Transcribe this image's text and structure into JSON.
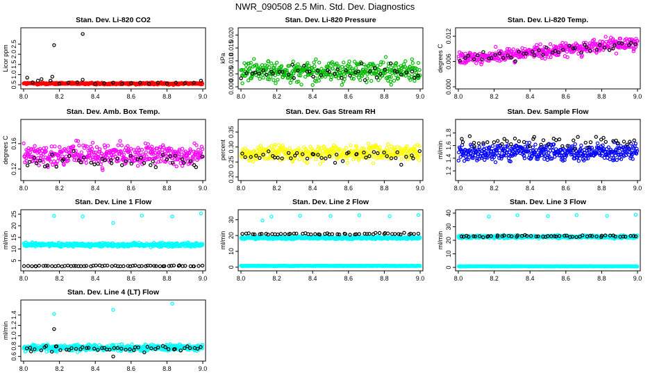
{
  "figure": {
    "title": "NWR_090508  2.5 Min. Std. Dev. Diagnostics"
  },
  "chart_data": [
    {
      "type": "scatter",
      "title": "Stan. Dev. Li-820 CO2",
      "ylabel": "Licor ppm",
      "xlim": [
        8.0,
        9.0
      ],
      "ylim": [
        0.4,
        3.2
      ],
      "xticks": [
        "8.0",
        "8.2",
        "8.4",
        "8.6",
        "8.8",
        "9.0"
      ],
      "yticks": [
        "0.5",
        "1.0",
        "1.5",
        "2.0",
        "2.5"
      ],
      "series": [
        {
          "color": "#ff0000",
          "gen": {
            "n": 420,
            "center": 0.56,
            "spread": 0.05
          }
        },
        {
          "color": "#000000",
          "points": [
            [
              8.02,
              0.85
            ],
            [
              8.05,
              0.62
            ],
            [
              8.08,
              0.7
            ],
            [
              8.1,
              0.78
            ],
            [
              8.15,
              0.7
            ],
            [
              8.16,
              0.9
            ],
            [
              8.17,
              2.45
            ],
            [
              8.2,
              0.55
            ],
            [
              8.25,
              0.6
            ],
            [
              8.3,
              0.62
            ],
            [
              8.33,
              0.75
            ],
            [
              8.33,
              3.0
            ],
            [
              8.4,
              0.55
            ],
            [
              8.45,
              0.58
            ],
            [
              8.5,
              0.6
            ],
            [
              8.55,
              0.55
            ],
            [
              8.6,
              0.58
            ],
            [
              8.65,
              0.6
            ],
            [
              8.7,
              0.55
            ],
            [
              8.75,
              0.6
            ],
            [
              8.8,
              0.55
            ],
            [
              8.85,
              0.6
            ],
            [
              8.9,
              0.58
            ],
            [
              8.95,
              0.6
            ],
            [
              8.99,
              0.7
            ]
          ]
        }
      ]
    },
    {
      "type": "scatter",
      "title": "Stan. Dev. Li-820 Pressure",
      "ylabel": "kPa",
      "xlim": [
        8.0,
        9.0
      ],
      "ylim": [
        0.0,
        0.022
      ],
      "xticks": [
        "8.0",
        "8.2",
        "8.4",
        "8.6",
        "8.8",
        "9.0"
      ],
      "yticks": [
        "0.000",
        "0.005",
        "0.010",
        "0.015",
        "0.020"
      ],
      "series": [
        {
          "color": "#00bb00",
          "gen": {
            "n": 420,
            "center": 0.006,
            "spread": 0.004
          }
        },
        {
          "color": "#000000",
          "gen": {
            "n": 45,
            "center": 0.0055,
            "spread": 0.003
          }
        }
      ]
    },
    {
      "type": "scatter",
      "title": "Stan. Dev. Li-820 Temp.",
      "ylabel": "degrees C",
      "xlim": [
        8.0,
        9.0
      ],
      "ylim": [
        0.0,
        0.0135
      ],
      "xticks": [
        "8.0",
        "8.2",
        "8.4",
        "8.6",
        "8.8",
        "9.0"
      ],
      "yticks": [
        "0.000",
        "0.006",
        "0.012"
      ],
      "series": [
        {
          "color": "#ff00ff",
          "gen": {
            "n": 420,
            "center": 0.0085,
            "spread": 0.0015,
            "trend": 0.004
          }
        },
        {
          "color": "#000000",
          "gen": {
            "n": 45,
            "center": 0.0085,
            "spread": 0.0012,
            "trend": 0.004
          }
        }
      ]
    },
    {
      "type": "scatter",
      "title": "Stan. Dev. Amb. Box Temp.",
      "ylabel": "degrees C",
      "xlim": [
        8.0,
        9.0
      ],
      "ylim": [
        0.105,
        0.195
      ],
      "xticks": [
        "8.0",
        "8.2",
        "8.4",
        "8.6",
        "8.8",
        "9.0"
      ],
      "yticks": [
        "0.12",
        "0.16"
      ],
      "series": [
        {
          "color": "#ff00ff",
          "gen": {
            "n": 420,
            "center": 0.142,
            "spread": 0.016
          }
        },
        {
          "color": "#000000",
          "gen": {
            "n": 45,
            "center": 0.132,
            "spread": 0.012
          }
        }
      ]
    },
    {
      "type": "scatter",
      "title": "Stan. Dev. Gas Stream RH",
      "ylabel": "percent",
      "xlim": [
        8.0,
        9.0
      ],
      "ylim": [
        0.195,
        0.385
      ],
      "xticks": [
        "8.0",
        "8.2",
        "8.4",
        "8.6",
        "8.8",
        "9.0"
      ],
      "yticks": [
        "0.20",
        "0.25",
        "0.30",
        "0.35"
      ],
      "series": [
        {
          "color": "#ffff00",
          "gen": {
            "n": 420,
            "center": 0.28,
            "spread": 0.025
          }
        },
        {
          "color": "#000000",
          "gen": {
            "n": 45,
            "center": 0.27,
            "spread": 0.02
          }
        }
      ]
    },
    {
      "type": "scatter",
      "title": "Stan. Dev. Sample Flow",
      "ylabel": "ml/min",
      "xlim": [
        8.0,
        9.0
      ],
      "ylim": [
        1.08,
        1.98
      ],
      "xticks": [
        "8.0",
        "8.2",
        "8.4",
        "8.6",
        "8.8",
        "9.0"
      ],
      "yticks": [
        "1.2",
        "1.4",
        "1.6",
        "1.8"
      ],
      "series": [
        {
          "color": "#0000ff",
          "gen": {
            "n": 420,
            "center": 1.5,
            "spread": 0.12
          }
        },
        {
          "color": "#000000",
          "gen": {
            "n": 45,
            "center": 1.65,
            "spread": 0.1
          }
        }
      ]
    },
    {
      "type": "scatter",
      "title": "Stan. Dev. Line 1 Flow",
      "ylabel": "ml/min",
      "xlim": [
        8.0,
        9.0
      ],
      "ylim": [
        1.5,
        26
      ],
      "xticks": [
        "8.0",
        "8.2",
        "8.4",
        "8.6",
        "8.8",
        "9.0"
      ],
      "yticks": [
        "5",
        "10",
        "15",
        "20",
        "25"
      ],
      "series": [
        {
          "color": "#00ffff",
          "gen": {
            "n": 480,
            "center": 11.8,
            "spread": 0.8
          }
        },
        {
          "color": "#00ffff",
          "points": [
            [
              8.17,
              24.2
            ],
            [
              8.33,
              24.0
            ],
            [
              8.5,
              21.2
            ],
            [
              8.66,
              24.4
            ],
            [
              8.83,
              24.0
            ],
            [
              8.99,
              25.3
            ]
          ]
        },
        {
          "color": "#000000",
          "gen": {
            "n": 60,
            "center": 2.7,
            "spread": 0.2
          }
        }
      ]
    },
    {
      "type": "scatter",
      "title": "Stan. Dev. Line 2 Flow",
      "ylabel": "ml/min",
      "xlim": [
        8.0,
        9.0
      ],
      "ylim": [
        -1,
        35
      ],
      "xticks": [
        "8.0",
        "8.2",
        "8.4",
        "8.6",
        "8.8",
        "9.0"
      ],
      "yticks": [
        "0",
        "10",
        "20",
        "30"
      ],
      "series": [
        {
          "color": "#00ffff",
          "gen": {
            "n": 480,
            "center": 18.5,
            "spread": 0.8
          }
        },
        {
          "color": "#00ffff",
          "gen": {
            "n": 480,
            "center": 0.8,
            "spread": 0.15
          }
        },
        {
          "color": "#00ffff",
          "points": [
            [
              8.12,
              29.5
            ],
            [
              8.17,
              32.0
            ],
            [
              8.33,
              32.5
            ],
            [
              8.5,
              32.3
            ],
            [
              8.66,
              32.8
            ],
            [
              8.83,
              32.2
            ],
            [
              8.99,
              33.0
            ]
          ]
        },
        {
          "color": "#000000",
          "gen": {
            "n": 55,
            "center": 21.0,
            "spread": 0.6
          }
        }
      ]
    },
    {
      "type": "scatter",
      "title": "Stan. Dev. Line 3 Flow",
      "ylabel": "ml/min",
      "xlim": [
        8.0,
        9.0
      ],
      "ylim": [
        -1,
        41
      ],
      "xticks": [
        "8.0",
        "8.2",
        "8.4",
        "8.6",
        "8.8",
        "9.0"
      ],
      "yticks": [
        "0",
        "10",
        "20",
        "30",
        "40"
      ],
      "series": [
        {
          "color": "#00ffff",
          "gen": {
            "n": 480,
            "center": 22.5,
            "spread": 1.0
          }
        },
        {
          "color": "#00ffff",
          "gen": {
            "n": 480,
            "center": 0.8,
            "spread": 0.15
          }
        },
        {
          "color": "#00ffff",
          "points": [
            [
              8.17,
              37.5
            ],
            [
              8.33,
              38.5
            ],
            [
              8.5,
              37.8
            ],
            [
              8.66,
              38.6
            ],
            [
              8.83,
              38.0
            ],
            [
              8.99,
              38.8
            ]
          ]
        },
        {
          "color": "#000000",
          "gen": {
            "n": 55,
            "center": 23.0,
            "spread": 0.8
          }
        }
      ]
    },
    {
      "type": "scatter",
      "title": "Stan. Dev. Line 4 (LT) Flow",
      "ylabel": "ml/min",
      "xlim": [
        8.0,
        9.0
      ],
      "ylim": [
        0.55,
        1.65
      ],
      "xticks": [
        "8.0",
        "8.2",
        "8.4",
        "8.6",
        "8.8",
        "9.0"
      ],
      "yticks": [
        "0.6",
        "0.8",
        "1.0",
        "1.2",
        "1.4"
      ],
      "series": [
        {
          "color": "#00ffff",
          "gen": {
            "n": 480,
            "center": 0.77,
            "spread": 0.06
          }
        },
        {
          "color": "#00ffff",
          "points": [
            [
              8.17,
              1.42
            ],
            [
              8.5,
              1.5
            ],
            [
              8.83,
              1.62
            ]
          ]
        },
        {
          "color": "#000000",
          "gen": {
            "n": 50,
            "center": 0.76,
            "spread": 0.05
          }
        },
        {
          "color": "#000000",
          "points": [
            [
              8.17,
              1.13
            ],
            [
              8.5,
              0.6
            ]
          ]
        }
      ]
    }
  ]
}
